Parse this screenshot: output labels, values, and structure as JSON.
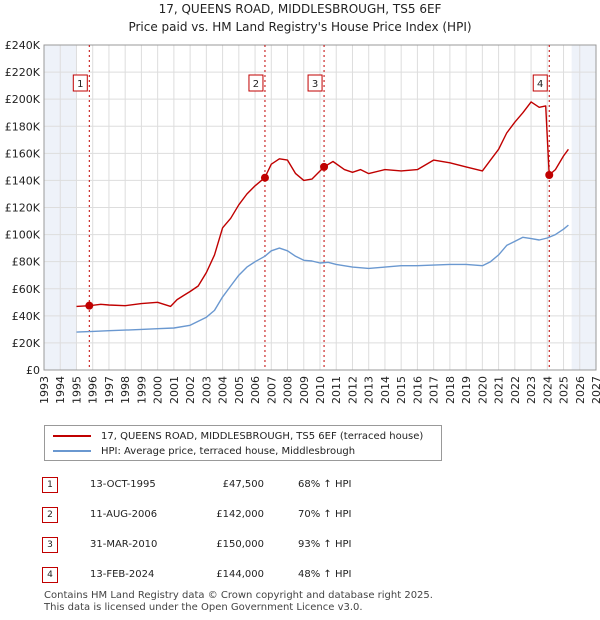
{
  "title_line1": "17, QUEENS ROAD, MIDDLESBROUGH, TS5 6EF",
  "title_line2": "Price paid vs. HM Land Registry's House Price Index (HPI)",
  "colors": {
    "property": "#c00000",
    "hpi": "#6a98d0",
    "grid": "#dddddd",
    "shade": "#eef2f9"
  },
  "chart_data": {
    "type": "line",
    "title": "Price paid vs. HM Land Registry's House Price Index (HPI)",
    "xlabel": "",
    "ylabel": "",
    "xlim": [
      1993,
      2027
    ],
    "ylim": [
      0,
      240000
    ],
    "y_ticks": [
      0,
      20000,
      40000,
      60000,
      80000,
      100000,
      120000,
      140000,
      160000,
      180000,
      200000,
      220000,
      240000
    ],
    "y_tick_labels": [
      "£0",
      "£20K",
      "£40K",
      "£60K",
      "£80K",
      "£100K",
      "£120K",
      "£140K",
      "£160K",
      "£180K",
      "£200K",
      "£220K",
      "£240K"
    ],
    "x_ticks": [
      1993,
      1994,
      1995,
      1996,
      1997,
      1998,
      1999,
      2000,
      2001,
      2002,
      2003,
      2004,
      2005,
      2006,
      2007,
      2008,
      2009,
      2010,
      2011,
      2012,
      2013,
      2014,
      2015,
      2016,
      2017,
      2018,
      2019,
      2020,
      2021,
      2022,
      2023,
      2024,
      2025,
      2026,
      2027
    ],
    "x_tick_labels": [
      "1993",
      "1994",
      "1995",
      "1996",
      "1997",
      "1998",
      "1999",
      "2000",
      "2001",
      "2002",
      "2003",
      "2004",
      "2005",
      "2006",
      "2007",
      "2008",
      "2009",
      "2010",
      "2011",
      "2012",
      "2013",
      "2014",
      "2015",
      "2016",
      "2017",
      "2018",
      "2019",
      "2020",
      "2021",
      "2022",
      "2023",
      "2024",
      "2025",
      "2026",
      "2027"
    ],
    "shaded_ranges": [
      [
        1993,
        1995.0
      ],
      [
        2025.5,
        2027
      ]
    ],
    "grid": true,
    "series": [
      {
        "name": "17, QUEENS ROAD, MIDDLESBROUGH, TS5 6EF (terraced house)",
        "x": [
          1995.0,
          1995.8,
          1996.5,
          1997.0,
          1998.0,
          1999.0,
          2000.0,
          2000.8,
          2001.2,
          2001.6,
          2002.0,
          2002.5,
          2003.0,
          2003.5,
          2004.0,
          2004.5,
          2005.0,
          2005.5,
          2006.0,
          2006.6,
          2007.0,
          2007.5,
          2008.0,
          2008.5,
          2009.0,
          2009.5,
          2010.25,
          2010.8,
          2011.5,
          2012.0,
          2012.5,
          2013.0,
          2014.0,
          2015.0,
          2016.0,
          2017.0,
          2018.0,
          2019.0,
          2020.0,
          2020.5,
          2021.0,
          2021.5,
          2022.0,
          2022.5,
          2023.0,
          2023.5,
          2023.9,
          2024.12,
          2024.5,
          2025.0,
          2025.3
        ],
        "values": [
          47000,
          47500,
          48500,
          48000,
          47500,
          49000,
          50000,
          47000,
          52000,
          55000,
          58000,
          62000,
          72000,
          85000,
          105000,
          112000,
          122000,
          130000,
          136000,
          142000,
          152000,
          156000,
          155000,
          145000,
          140000,
          141000,
          150000,
          154000,
          148000,
          146000,
          148000,
          145000,
          148000,
          147000,
          148000,
          155000,
          153000,
          150000,
          147000,
          155000,
          163000,
          175000,
          183000,
          190000,
          198000,
          194000,
          195000,
          144000,
          148000,
          158000,
          163000
        ]
      },
      {
        "name": "HPI: Average price, terraced house, Middlesbrough",
        "x": [
          1995.0,
          1996.0,
          1997.0,
          1998.0,
          1999.0,
          2000.0,
          2001.0,
          2002.0,
          2003.0,
          2003.5,
          2004.0,
          2004.5,
          2005.0,
          2005.5,
          2006.0,
          2006.6,
          2007.0,
          2007.5,
          2008.0,
          2008.5,
          2009.0,
          2009.5,
          2010.0,
          2010.5,
          2011.0,
          2012.0,
          2013.0,
          2014.0,
          2015.0,
          2016.0,
          2017.0,
          2018.0,
          2019.0,
          2020.0,
          2020.5,
          2021.0,
          2021.5,
          2022.0,
          2022.5,
          2023.0,
          2023.5,
          2024.0,
          2024.5,
          2025.0,
          2025.3
        ],
        "values": [
          28000,
          28500,
          29000,
          29500,
          30000,
          30500,
          31000,
          33000,
          39000,
          44000,
          54000,
          62000,
          70000,
          76000,
          80000,
          84000,
          88000,
          90000,
          88000,
          84000,
          81000,
          80500,
          79000,
          79500,
          78000,
          76000,
          75000,
          76000,
          77000,
          77000,
          77500,
          78000,
          78000,
          77000,
          80000,
          85000,
          92000,
          95000,
          98000,
          97000,
          96000,
          97500,
          100000,
          104000,
          107000
        ]
      }
    ],
    "transactions": [
      {
        "label": "1",
        "x": 1995.79,
        "value": 47500
      },
      {
        "label": "2",
        "x": 2006.61,
        "value": 142000
      },
      {
        "label": "3",
        "x": 2010.25,
        "value": 150000
      },
      {
        "label": "4",
        "x": 2024.12,
        "value": 144000
      }
    ]
  },
  "legend": {
    "property_label": "17, QUEENS ROAD, MIDDLESBROUGH, TS5 6EF (terraced house)",
    "hpi_label": "HPI: Average price, terraced house, Middlesbrough"
  },
  "table": [
    {
      "num": "1",
      "date": "13-OCT-1995",
      "price": "£47,500",
      "hpi": "68% ↑ HPI"
    },
    {
      "num": "2",
      "date": "11-AUG-2006",
      "price": "£142,000",
      "hpi": "70% ↑ HPI"
    },
    {
      "num": "3",
      "date": "31-MAR-2010",
      "price": "£150,000",
      "hpi": "93% ↑ HPI"
    },
    {
      "num": "4",
      "date": "13-FEB-2024",
      "price": "£144,000",
      "hpi": "48% ↑ HPI"
    }
  ],
  "footer_line1": "Contains HM Land Registry data © Crown copyright and database right 2025.",
  "footer_line2": "This data is licensed under the Open Government Licence v3.0."
}
